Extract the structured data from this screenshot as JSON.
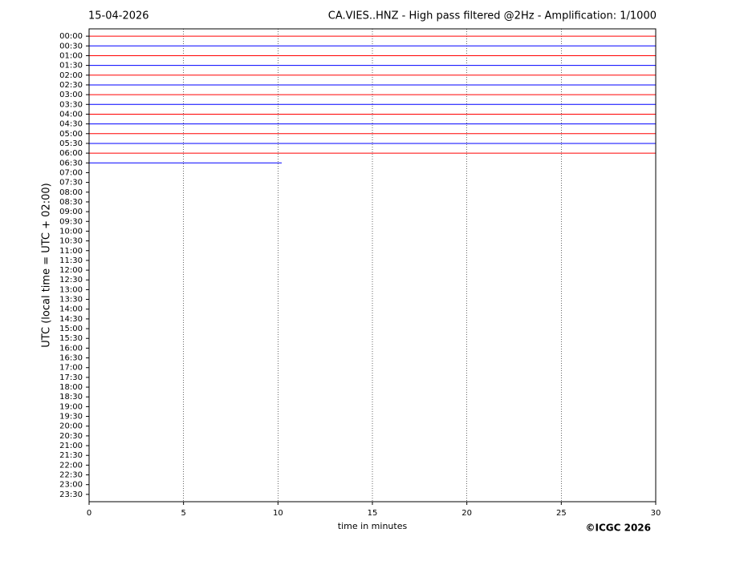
{
  "chart_data": {
    "type": "helicorder",
    "date": "15-04-2026",
    "title": "CA.VIES..HNZ - High pass filtered @2Hz - Amplification: 1/1000",
    "y_label": "UTC (local time = UTC + 02:00)",
    "x_label": "time in minutes",
    "copyright": "©ICGC 2026",
    "categories": [
      "00:00",
      "00:30",
      "01:00",
      "01:30",
      "02:00",
      "02:30",
      "03:00",
      "03:30",
      "04:00",
      "04:30",
      "05:00",
      "05:30",
      "06:00",
      "06:30",
      "07:00",
      "07:30",
      "08:00",
      "08:30",
      "09:00",
      "09:30",
      "10:00",
      "10:30",
      "11:00",
      "11:30",
      "12:00",
      "12:30",
      "13:00",
      "13:30",
      "14:00",
      "14:30",
      "15:00",
      "15:30",
      "16:00",
      "16:30",
      "17:00",
      "17:30",
      "18:00",
      "18:30",
      "19:00",
      "19:30",
      "20:00",
      "20:30",
      "21:00",
      "21:30",
      "22:00",
      "22:30",
      "23:00",
      "23:30"
    ],
    "values": [
      30,
      30,
      30,
      30,
      30,
      30,
      30,
      30,
      30,
      30,
      30,
      30,
      30,
      10.2,
      null,
      null,
      null,
      null,
      null,
      null,
      null,
      null,
      null,
      null,
      null,
      null,
      null,
      null,
      null,
      null,
      null,
      null,
      null,
      null,
      null,
      null,
      null,
      null,
      null,
      null,
      null,
      null,
      null,
      null,
      null,
      null,
      null,
      null
    ],
    "colors": [
      "#ff0000",
      "#0000ff"
    ],
    "xlim": [
      0,
      30
    ],
    "xticks": [
      0,
      5,
      10,
      15,
      20,
      25,
      30
    ],
    "grid": true
  }
}
